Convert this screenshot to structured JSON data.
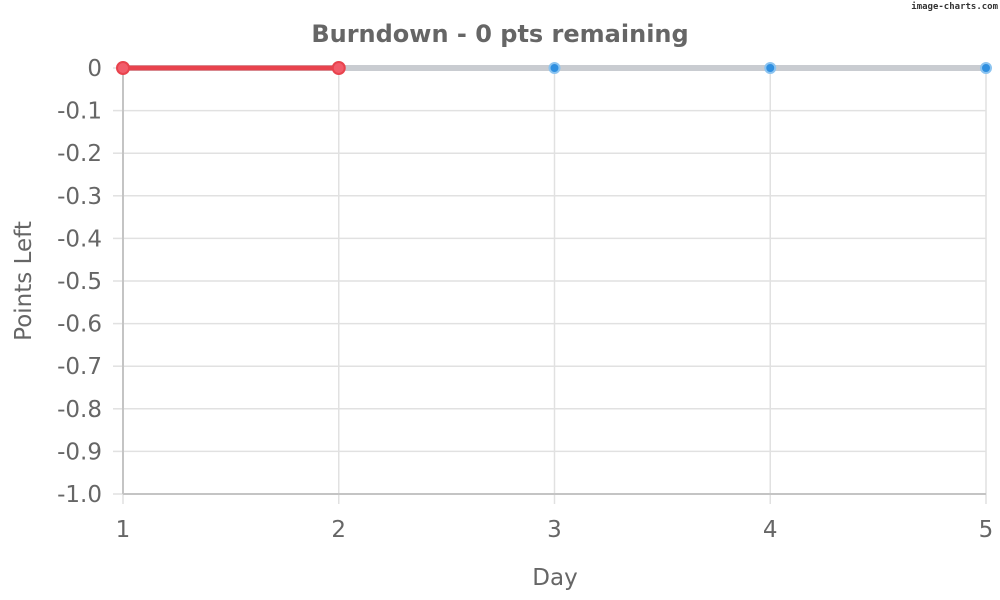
{
  "watermark": "image-charts.com",
  "chart_data": {
    "type": "line",
    "title": "Burndown - 0 pts remaining",
    "xlabel": "Day",
    "ylabel": "Points Left",
    "categories": [
      1,
      2,
      3,
      4,
      5
    ],
    "x_tick_labels": [
      "1",
      "2",
      "3",
      "4",
      "5"
    ],
    "y_tick_labels": [
      "0",
      "-0.1",
      "-0.2",
      "-0.3",
      "-0.4",
      "-0.5",
      "-0.6",
      "-0.7",
      "-0.8",
      "-0.9",
      "-1.0"
    ],
    "y_ticks": [
      0,
      -0.1,
      -0.2,
      -0.3,
      -0.4,
      -0.5,
      -0.6,
      -0.7,
      -0.8,
      -0.9,
      -1.0
    ],
    "ylim": [
      -1.0,
      0
    ],
    "xlim": [
      1,
      5
    ],
    "grid": true,
    "series": [
      {
        "values": [
          0,
          0
        ],
        "x": [
          1,
          2
        ],
        "color": "#e8434d",
        "point_fill": "#f25c6a"
      },
      {
        "values": [
          0,
          0,
          0,
          0,
          0
        ],
        "x": [
          1,
          2,
          3,
          4,
          5
        ],
        "color": "#c9ccd1",
        "point_fill": "#2f8fe0"
      }
    ]
  }
}
